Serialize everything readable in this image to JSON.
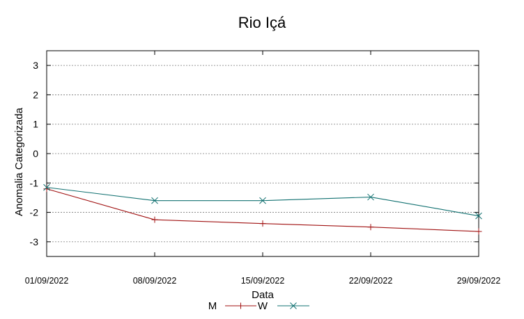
{
  "chart_data": {
    "type": "line",
    "title": "Rio Içá",
    "xlabel": "Data",
    "ylabel": "Anomalia Categorizada",
    "categories": [
      "01/09/2022",
      "08/09/2022",
      "15/09/2022",
      "22/09/2022",
      "29/09/2022"
    ],
    "yticks": [
      "3",
      "2",
      "1",
      "0",
      "-1",
      "-2",
      "-3"
    ],
    "ylim": [
      -3.5,
      3.5
    ],
    "grid": true,
    "series": [
      {
        "name": "M",
        "color": "#a01010",
        "marker": "plus",
        "values": [
          -1.2,
          -2.25,
          -2.38,
          -2.5,
          -2.65
        ]
      },
      {
        "name": "W",
        "color": "#107070",
        "marker": "cross",
        "values": [
          -1.15,
          -1.6,
          -1.6,
          -1.48,
          -2.12
        ]
      }
    ]
  }
}
